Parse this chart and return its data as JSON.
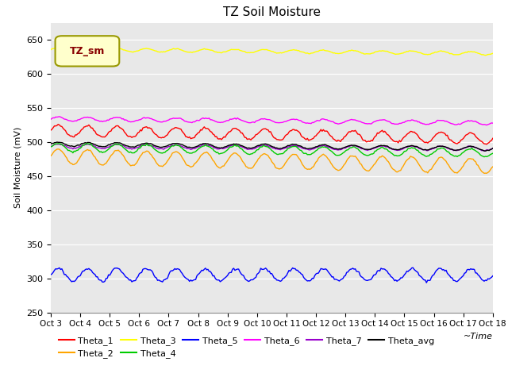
{
  "title": "TZ Soil Moisture",
  "xlabel": "~Time",
  "ylabel": "Soil Moisture (mV)",
  "ylim": [
    250,
    675
  ],
  "yticks": [
    250,
    300,
    350,
    400,
    450,
    500,
    550,
    600,
    650
  ],
  "n_days": 15,
  "series": {
    "Theta_1": {
      "color": "#ff0000",
      "base": 517,
      "amp": 8,
      "trend": -0.033,
      "noise": 0.8
    },
    "Theta_2": {
      "color": "#ffa500",
      "base": 479,
      "amp": 11,
      "trend": -0.04,
      "noise": 0.5
    },
    "Theta_3": {
      "color": "#ffff00",
      "base": 636,
      "amp": 2.5,
      "trend": -0.016,
      "noise": 0.3
    },
    "Theta_4": {
      "color": "#00cc00",
      "base": 492,
      "amp": 6,
      "trend": -0.022,
      "noise": 0.5
    },
    "Theta_5": {
      "color": "#0000ff",
      "base": 305,
      "amp": 9,
      "trend": 0.001,
      "noise": 1.0
    },
    "Theta_6": {
      "color": "#ff00ff",
      "base": 534,
      "amp": 3,
      "trend": -0.016,
      "noise": 0.4
    },
    "Theta_7": {
      "color": "#9900cc",
      "base": 494,
      "amp": 3,
      "trend": -0.01,
      "noise": 0.4
    },
    "Theta_avg": {
      "color": "#000000",
      "base": 497,
      "amp": 3,
      "trend": -0.018,
      "noise": 0.3
    }
  },
  "x_tick_labels": [
    "Oct 3",
    "Oct 4",
    "Oct 5",
    "Oct 6",
    "Oct 7",
    "Oct 8",
    "Oct 9",
    "Oct 10",
    "Oct 11",
    "Oct 12",
    "Oct 13",
    "Oct 14",
    "Oct 15",
    "Oct 16",
    "Oct 17",
    "Oct 18"
  ],
  "background_color": "#e8e8e8",
  "plot_bg_color": "#e8e8e8",
  "legend_box_color": "#ffffcc",
  "legend_box_edge": "#999900",
  "legend_text_color": "#880000",
  "legend_text": "TZ_sm"
}
